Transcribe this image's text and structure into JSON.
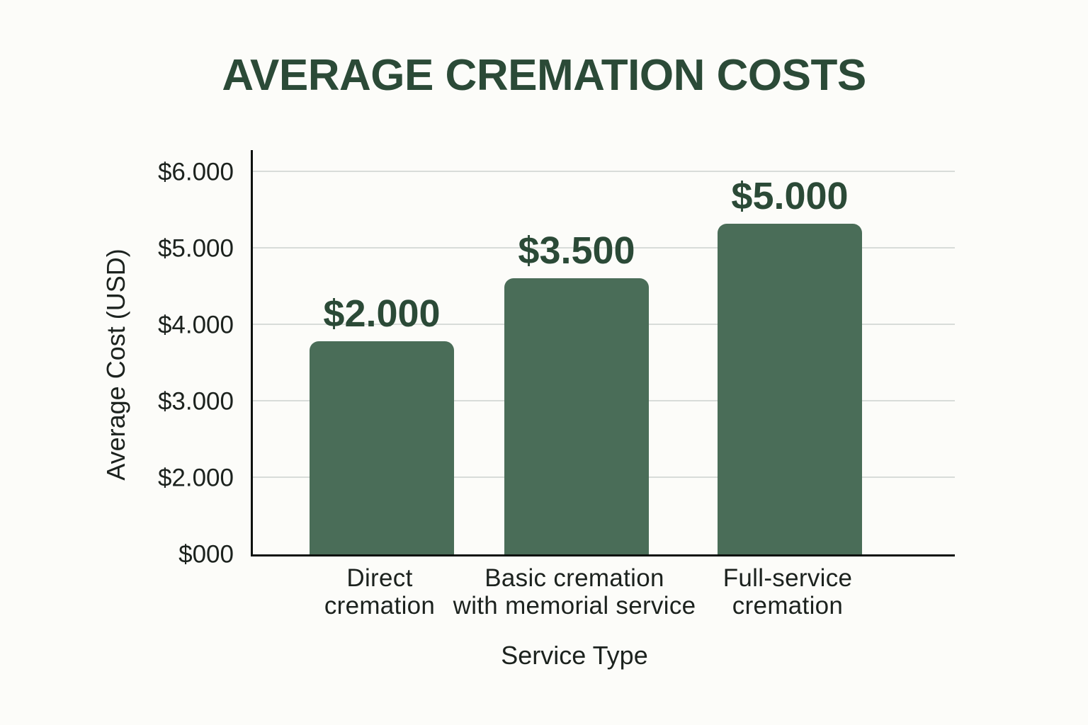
{
  "chart_data": {
    "type": "bar",
    "title": "AVERAGE CREMATION COSTS",
    "xlabel": "Service Type",
    "ylabel": "Average Cost (USD)",
    "categories": [
      "Direct cremation",
      "Basic cremation with memorial service",
      "Full-service cremation"
    ],
    "category_lines": [
      [
        "Direct",
        "cremation"
      ],
      [
        "Basic cremation",
        "with memorial service"
      ],
      [
        "Full-service",
        "cremation"
      ]
    ],
    "values": [
      2000,
      3500,
      5000
    ],
    "value_labels": [
      "$2.000",
      "$3.500",
      "$5.000"
    ],
    "y_tick_labels": [
      "$000",
      "$2.000",
      "$3.000",
      "$4.000",
      "$5.000",
      "$6.000"
    ],
    "ylim": [
      0,
      6000
    ],
    "grid": "horizontal",
    "legend": "none",
    "bar_height_fractions": [
      0.527,
      0.683,
      0.818
    ],
    "colors": {
      "background": "#fcfcf9",
      "bar": "#4a6d58",
      "title": "#2b4a37",
      "value_label": "#2b4a37",
      "axis_text": "#1c221e",
      "gridline": "#d8dcd9",
      "axis_line": "#0e120f"
    }
  }
}
